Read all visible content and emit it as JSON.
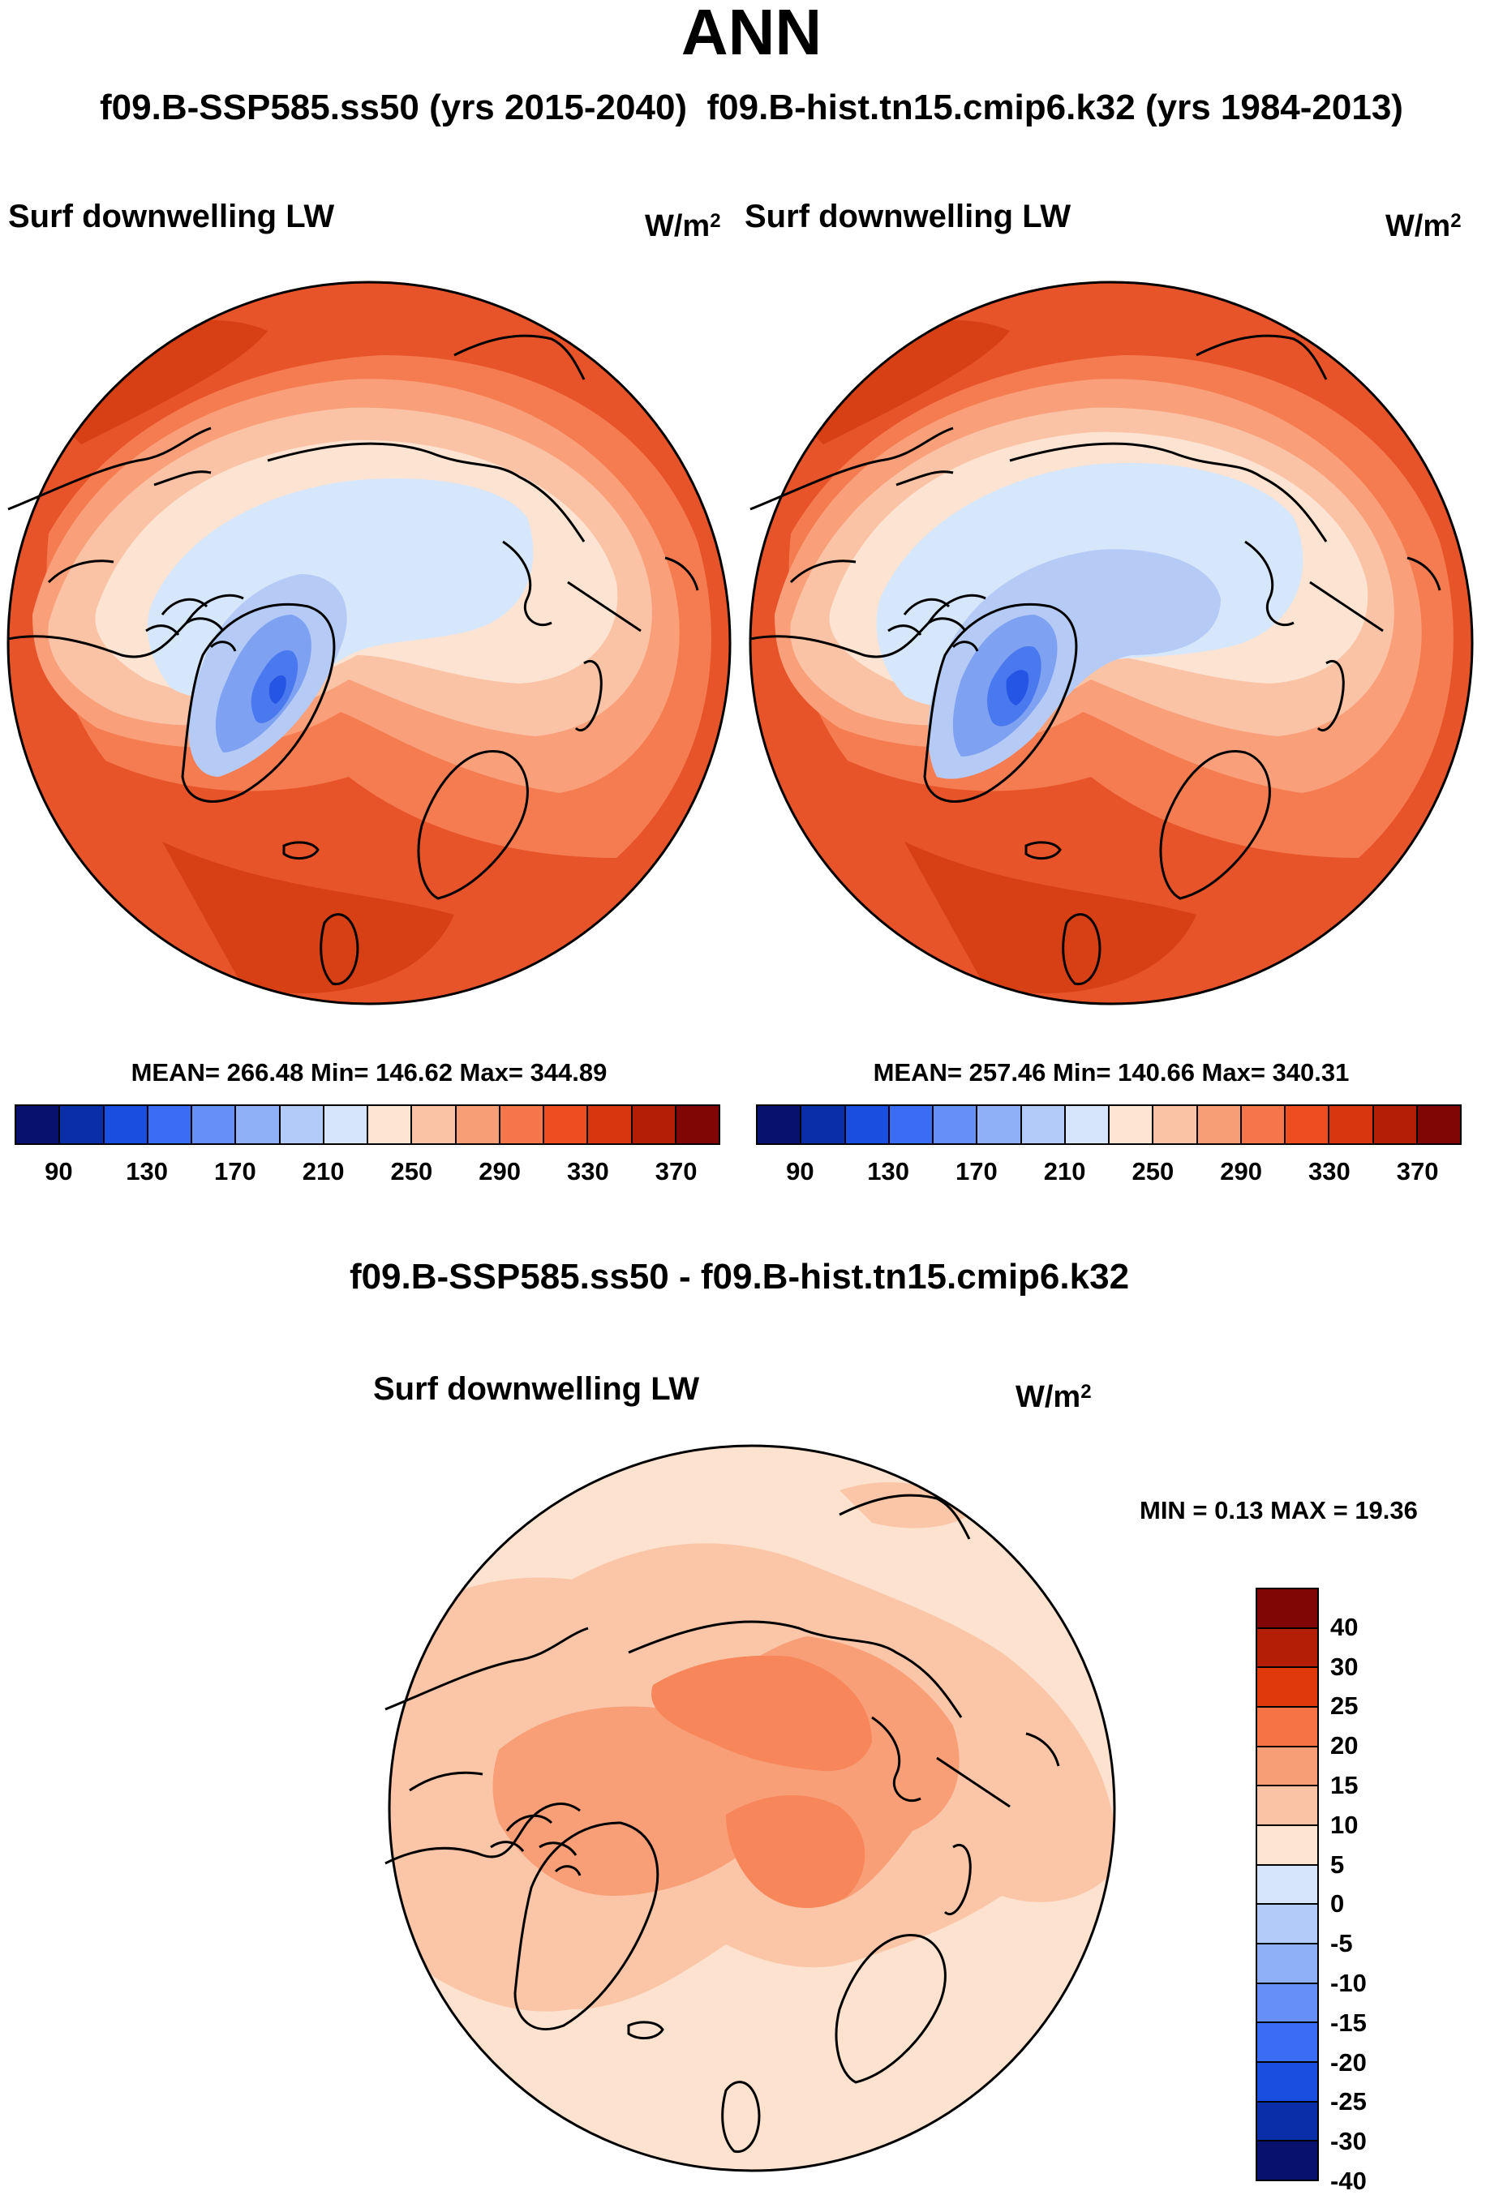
{
  "title": "ANN",
  "subtitle_left": "f09.B-SSP585.ss50 (yrs 2015-2040)",
  "subtitle_right": "f09.B-hist.tn15.cmip6.k32 (yrs 1984-2013)",
  "panels": [
    {
      "variable": "Surf downwelling LW",
      "units_base": "W/m",
      "units_exp": "2",
      "stats": "MEAN= 266.48  Min= 146.62  Max= 344.89"
    },
    {
      "variable": "Surf downwelling LW",
      "units_base": "W/m",
      "units_exp": "2",
      "stats": "MEAN= 257.46  Min= 140.66  Max= 340.31"
    }
  ],
  "diff_panel": {
    "title": "f09.B-SSP585.ss50 - f09.B-hist.tn15.cmip6.k32",
    "variable": "Surf downwelling LW",
    "units_base": "W/m",
    "units_exp": "2",
    "stats": "MIN =   0.13 MAX =  19.36"
  },
  "colorbar_abs": {
    "colors": [
      "#08126e",
      "#0a2ea8",
      "#1a4ee0",
      "#3b6cf4",
      "#6690f5",
      "#8fb0f6",
      "#b3cbf8",
      "#d6e5fb",
      "#fde5d2",
      "#fbc3a6",
      "#f89e77",
      "#f5764b",
      "#ee4d1f",
      "#d8360f",
      "#b21f06",
      "#800606"
    ],
    "labels": [
      "90",
      "130",
      "170",
      "210",
      "250",
      "290",
      "330",
      "370"
    ]
  },
  "colorbar_diff": {
    "colors": [
      "#800606",
      "#b21f06",
      "#e03a0c",
      "#f57344",
      "#f89e77",
      "#fbc3a6",
      "#fde5d2",
      "#d6e5fb",
      "#b3cbf8",
      "#8fb0f6",
      "#6690f5",
      "#3b6cf4",
      "#1a4ee0",
      "#0a2ea8",
      "#08126e"
    ],
    "labels": [
      "40",
      "30",
      "25",
      "20",
      "15",
      "10",
      "5",
      "0",
      "-5",
      "-10",
      "-15",
      "-20",
      "-25",
      "-30",
      "-40"
    ]
  },
  "map_colors": {
    "abs_outer": "#e8542a",
    "abs_deep": "#d73f14",
    "abs_ring2": "#f57c50",
    "abs_ring3": "#f9a07b",
    "abs_ring4": "#fbc3a6",
    "abs_ring5": "#fde4d2",
    "abs_ice1": "#d6e6fb",
    "abs_ice2": "#b5cbf5",
    "abs_ice3": "#7fa1f2",
    "abs_ice4": "#4a79ef",
    "abs_ice5": "#2555e4",
    "diff_base": "#fde2cf",
    "diff_mid": "#fbc6a8",
    "diff_high": "#f89f78",
    "diff_hot": "#f7865a",
    "coast": "#000000"
  }
}
